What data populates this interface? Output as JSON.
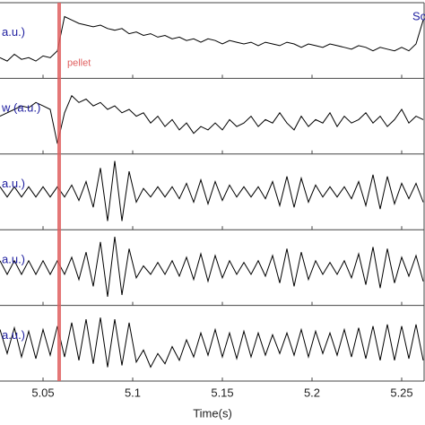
{
  "chart_data": {
    "type": "line",
    "xlabel": "Time(s)",
    "xlim": [
      5.026,
      5.263
    ],
    "xticks": [
      5.05,
      5.1,
      5.15,
      5.2,
      5.25
    ],
    "ylim": [
      -1,
      1
    ],
    "label_color": "#2020a0",
    "annotations": [
      {
        "text": "Sc"
      },
      {
        "text": "pellet",
        "x": 5.059,
        "color": "#e06060"
      }
    ],
    "x": [
      5.026,
      5.03,
      5.034,
      5.038,
      5.042,
      5.046,
      5.05,
      5.054,
      5.058,
      5.062,
      5.066,
      5.07,
      5.074,
      5.078,
      5.082,
      5.086,
      5.09,
      5.094,
      5.098,
      5.102,
      5.106,
      5.11,
      5.114,
      5.118,
      5.122,
      5.126,
      5.13,
      5.134,
      5.138,
      5.142,
      5.146,
      5.15,
      5.154,
      5.158,
      5.162,
      5.166,
      5.17,
      5.174,
      5.178,
      5.182,
      5.186,
      5.19,
      5.194,
      5.198,
      5.202,
      5.206,
      5.21,
      5.214,
      5.218,
      5.222,
      5.226,
      5.23,
      5.234,
      5.238,
      5.242,
      5.246,
      5.25,
      5.254,
      5.258,
      5.262
    ],
    "series": [
      {
        "name": "a.u.)",
        "color": "#000000",
        "values": [
          -0.5,
          -0.6,
          -0.4,
          -0.55,
          -0.5,
          -0.6,
          -0.45,
          -0.5,
          -0.3,
          0.7,
          0.6,
          0.5,
          0.45,
          0.4,
          0.45,
          0.35,
          0.3,
          0.35,
          0.2,
          0.25,
          0.15,
          0.2,
          0.1,
          0.15,
          0.05,
          0.1,
          0.0,
          0.05,
          -0.05,
          0.05,
          0.0,
          -0.1,
          0.0,
          -0.05,
          -0.1,
          -0.05,
          -0.15,
          -0.05,
          -0.1,
          -0.15,
          -0.05,
          -0.1,
          -0.2,
          -0.1,
          -0.15,
          -0.2,
          -0.1,
          -0.15,
          -0.2,
          -0.25,
          -0.15,
          -0.2,
          -0.3,
          -0.2,
          -0.25,
          -0.3,
          -0.2,
          -0.3,
          -0.1,
          0.6
        ]
      },
      {
        "name": "w (a.u.)",
        "color": "#000000",
        "values": [
          0.0,
          0.1,
          0.2,
          0.3,
          0.25,
          0.4,
          0.3,
          0.2,
          -0.8,
          0.1,
          0.6,
          0.4,
          0.5,
          0.3,
          0.4,
          0.2,
          0.3,
          0.1,
          0.2,
          0.0,
          0.1,
          -0.2,
          0.0,
          -0.3,
          -0.1,
          -0.4,
          -0.2,
          -0.5,
          -0.3,
          -0.4,
          -0.2,
          -0.4,
          -0.1,
          -0.3,
          -0.2,
          0.0,
          -0.3,
          -0.1,
          -0.2,
          0.1,
          -0.2,
          -0.4,
          0.0,
          -0.3,
          -0.1,
          -0.2,
          0.1,
          -0.3,
          0.0,
          -0.2,
          -0.1,
          0.1,
          -0.2,
          0.0,
          -0.3,
          -0.1,
          0.2,
          -0.2,
          0.0,
          -0.1
        ]
      },
      {
        "name": "a.u.)",
        "color": "#000000",
        "values": [
          0.15,
          -0.15,
          0.15,
          -0.15,
          0.15,
          -0.15,
          0.15,
          -0.15,
          0.15,
          -0.15,
          0.2,
          -0.25,
          0.3,
          -0.45,
          0.7,
          -0.85,
          0.9,
          -0.85,
          0.6,
          -0.3,
          0.1,
          -0.15,
          0.15,
          -0.15,
          0.15,
          -0.2,
          0.25,
          -0.3,
          0.35,
          -0.35,
          0.3,
          -0.25,
          0.2,
          -0.15,
          0.15,
          -0.15,
          0.15,
          -0.2,
          0.3,
          -0.4,
          0.45,
          -0.45,
          0.4,
          -0.3,
          0.2,
          -0.15,
          0.15,
          -0.15,
          0.15,
          -0.2,
          0.3,
          -0.4,
          0.5,
          -0.5,
          0.45,
          -0.35,
          0.25,
          -0.2,
          0.25,
          -0.3
        ]
      },
      {
        "name": "a.u.)",
        "color": "#000000",
        "values": [
          0.2,
          -0.2,
          0.2,
          -0.2,
          0.2,
          -0.2,
          0.2,
          -0.2,
          0.2,
          -0.2,
          0.3,
          -0.35,
          0.45,
          -0.55,
          0.75,
          -0.85,
          0.9,
          -0.8,
          0.55,
          -0.3,
          0.05,
          -0.2,
          0.15,
          -0.2,
          0.2,
          -0.25,
          0.3,
          -0.35,
          0.4,
          -0.4,
          0.35,
          -0.3,
          0.2,
          -0.2,
          0.15,
          -0.2,
          0.2,
          -0.25,
          0.35,
          -0.45,
          0.55,
          -0.55,
          0.45,
          -0.35,
          0.2,
          -0.2,
          0.15,
          -0.2,
          0.2,
          -0.3,
          0.4,
          -0.5,
          0.6,
          -0.6,
          0.55,
          -0.45,
          0.3,
          -0.25,
          0.35,
          -0.4
        ]
      },
      {
        "name": "a.u.)",
        "color": "#000000",
        "values": [
          0.4,
          -0.3,
          0.45,
          -0.4,
          0.35,
          -0.45,
          0.4,
          -0.35,
          0.5,
          -0.4,
          0.6,
          -0.5,
          0.7,
          -0.6,
          0.75,
          -0.7,
          0.7,
          -0.65,
          0.6,
          -0.55,
          -0.2,
          -0.7,
          -0.3,
          -0.6,
          -0.1,
          -0.5,
          0.1,
          -0.4,
          0.3,
          -0.35,
          0.4,
          -0.4,
          0.3,
          -0.45,
          0.35,
          -0.4,
          0.3,
          -0.35,
          0.25,
          -0.3,
          0.3,
          -0.35,
          0.4,
          -0.4,
          0.35,
          -0.3,
          0.3,
          -0.35,
          0.4,
          -0.4,
          0.45,
          -0.45,
          0.5,
          -0.5,
          0.55,
          -0.5,
          0.5,
          -0.45,
          0.55,
          -0.5
        ]
      }
    ]
  }
}
